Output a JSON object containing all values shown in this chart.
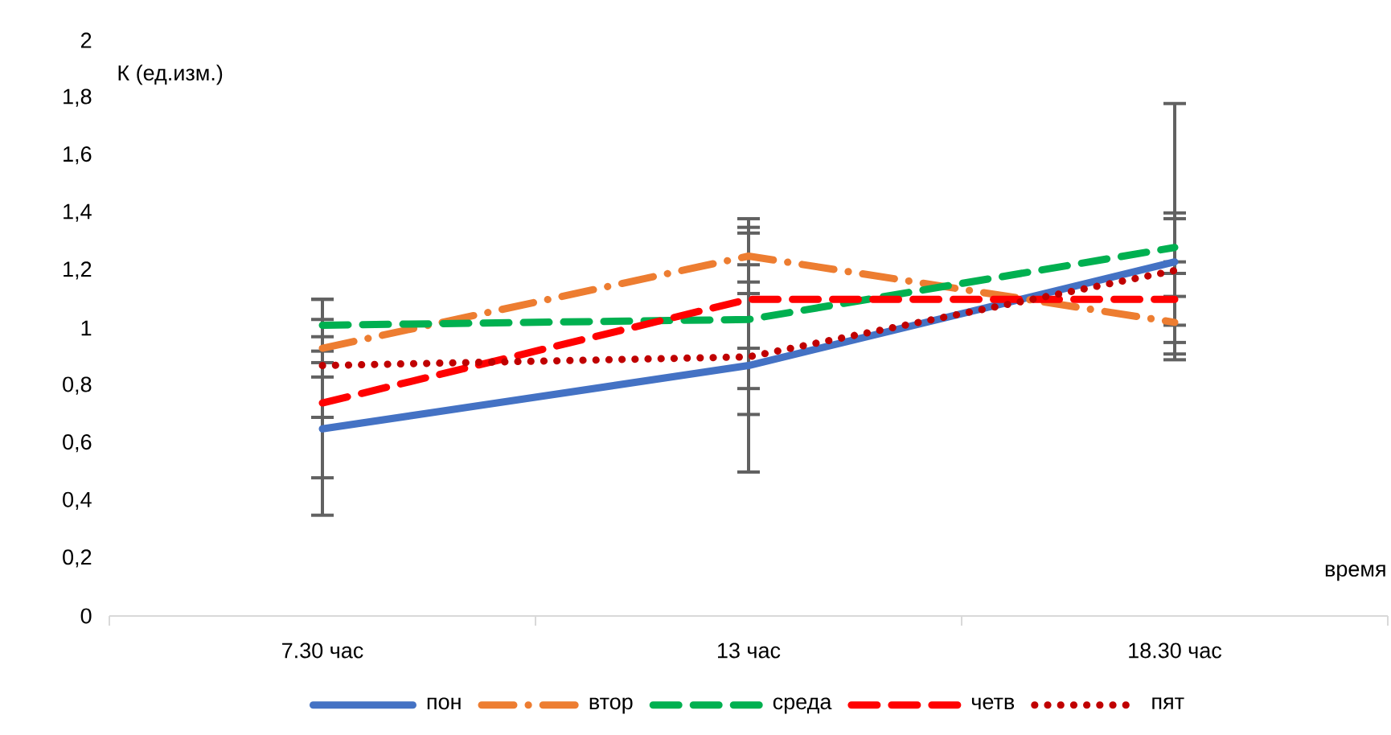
{
  "chart_data": {
    "type": "line",
    "ylabel": "К (ед.изм.)",
    "xlabel": "время",
    "categories": [
      "7.30 час",
      "13 час",
      "18.30 час"
    ],
    "ylim": [
      0,
      2
    ],
    "yticks": [
      0,
      {
        "value": 0.2,
        "label": "0,2"
      },
      {
        "value": 0.4,
        "label": "0,4"
      },
      {
        "value": 0.6,
        "label": "0,6"
      },
      {
        "value": 0.8,
        "label": "0,8"
      },
      1,
      {
        "value": 1.2,
        "label": "1,2"
      },
      {
        "value": 1.4,
        "label": "1,4"
      },
      {
        "value": 1.6,
        "label": "1,6"
      },
      {
        "value": 1.8,
        "label": "1,8"
      },
      2
    ],
    "grid": false,
    "legend": "bottom",
    "marker": "none",
    "series": [
      {
        "name": "пон",
        "color": "#4472c4",
        "line_style": "solid",
        "values": [
          0.65,
          0.87,
          1.23
        ],
        "errors": [
          [
            0.35,
            0.92
          ],
          [
            0.5,
            1.22
          ],
          [
            0.89,
            1.78
          ]
        ]
      },
      {
        "name": "втор",
        "color": "#ed7d31",
        "line_style": "dashdot",
        "values": [
          0.93,
          1.25,
          1.02
        ],
        "errors": [
          [
            0.83,
            1.03
          ],
          [
            1.12,
            1.38
          ],
          [
            0.91,
            1.11
          ]
        ]
      },
      {
        "name": "среда",
        "color": "#00b050",
        "line_style": "dashed",
        "values": [
          1.01,
          1.03,
          1.28
        ],
        "errors": [
          [
            0.88,
            1.1
          ],
          [
            0.79,
            1.33
          ],
          [
            1.19,
            1.38
          ]
        ]
      },
      {
        "name": "четв",
        "color": "#ff0000",
        "line_style": "dashed",
        "values": [
          0.74,
          1.1,
          1.1
        ],
        "errors": [
          [
            0.48,
            0.97
          ],
          [
            0.93,
            1.35
          ],
          [
            0.95,
            1.23
          ]
        ]
      },
      {
        "name": "пят",
        "color": "#c00000",
        "line_style": "dotted",
        "values": [
          0.87,
          0.9,
          1.2
        ],
        "errors": [
          [
            0.69,
            1.1
          ],
          [
            0.7,
            1.16
          ],
          [
            1.01,
            1.4
          ]
        ]
      }
    ]
  }
}
